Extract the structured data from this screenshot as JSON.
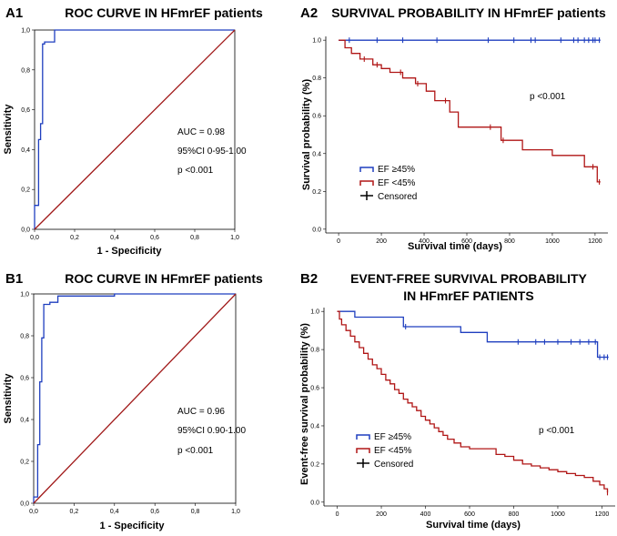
{
  "colors": {
    "blue": "#1f3fbf",
    "red": "#b01616",
    "diag": "#a01818",
    "axis": "#000000",
    "black": "#000000"
  },
  "chart_data": [
    {
      "id": "A1",
      "panel_label": "A1",
      "type": "line",
      "title": "ROC CURVE IN HFmrEF patients",
      "xlabel": "1 - Specificity",
      "ylabel": "Sensitivity",
      "xlim": [
        0,
        1
      ],
      "ylim": [
        0,
        1
      ],
      "xticks": [
        "0,0",
        "0,2",
        "0,4",
        "0,6",
        "0,8",
        "1,0"
      ],
      "yticks": [
        "0,0",
        "0,2",
        "0,4",
        "0,6",
        "0,8",
        "1,0"
      ],
      "annotations": [
        "AUC = 0.98",
        "95%CI 0-95-1.00",
        "p <0.001"
      ],
      "series": [
        {
          "name": "ROC",
          "color": "blue",
          "x": [
            0,
            0,
            0.02,
            0.02,
            0.03,
            0.03,
            0.04,
            0.04,
            0.05,
            0.05,
            0.07,
            0.07,
            0.1,
            0.1,
            1
          ],
          "y": [
            0,
            0.12,
            0.12,
            0.45,
            0.45,
            0.53,
            0.53,
            0.93,
            0.93,
            0.94,
            0.94,
            0.94,
            0.94,
            1,
            1
          ]
        },
        {
          "name": "Reference",
          "color": "diag",
          "x": [
            0,
            1
          ],
          "y": [
            0,
            1
          ]
        }
      ]
    },
    {
      "id": "A2",
      "panel_label": "A2",
      "type": "line",
      "title": "SURVIVAL PROBABILITY IN HFmrEF patients",
      "xlabel": "Survival time (days)",
      "ylabel": "Survival probability (%)",
      "xlim": [
        -60,
        1260
      ],
      "ylim": [
        -0.02,
        1.02
      ],
      "xticks": [
        0,
        200,
        400,
        600,
        800,
        1000,
        1200
      ],
      "yticks": [
        "0.0",
        "0.2",
        "0.4",
        "0.6",
        "0.8",
        "1.0"
      ],
      "annotations": [
        "p <0.001"
      ],
      "legend": [
        {
          "label": "EF ≥45%",
          "color": "blue"
        },
        {
          "label": "EF <45%",
          "color": "red"
        },
        {
          "label": "Censored",
          "color": "black"
        }
      ],
      "series": [
        {
          "name": "EF ≥45%",
          "color": "blue",
          "x": [
            0,
            1225
          ],
          "y": [
            1.0,
            1.0
          ],
          "censored": [
            50,
            180,
            300,
            460,
            700,
            820,
            900,
            920,
            1040,
            1100,
            1120,
            1150,
            1170,
            1190,
            1200,
            1220
          ]
        },
        {
          "name": "EF <45%",
          "color": "red",
          "x": [
            0,
            30,
            60,
            100,
            160,
            200,
            240,
            300,
            360,
            410,
            450,
            520,
            560,
            760,
            860,
            1000,
            1150,
            1210,
            1225
          ],
          "y": [
            1.0,
            0.96,
            0.93,
            0.9,
            0.87,
            0.85,
            0.83,
            0.8,
            0.77,
            0.73,
            0.68,
            0.62,
            0.54,
            0.47,
            0.42,
            0.39,
            0.33,
            0.25,
            0.25
          ],
          "censored": [
            120,
            180,
            290,
            370,
            500,
            710,
            770,
            1190,
            1220
          ]
        }
      ]
    },
    {
      "id": "B1",
      "panel_label": "B1",
      "type": "line",
      "title": "ROC CURVE IN HFmrEF patients",
      "xlabel": "1 - Specificity",
      "ylabel": "Sensitivity",
      "xlim": [
        0,
        1
      ],
      "ylim": [
        0,
        1
      ],
      "xticks": [
        "0,0",
        "0,2",
        "0,4",
        "0,6",
        "0,8",
        "1,0"
      ],
      "yticks": [
        "0,0",
        "0,2",
        "0,4",
        "0,6",
        "0,8",
        "1,0"
      ],
      "annotations": [
        "AUC = 0.96",
        "95%CI 0.90-1.00",
        "p <0.001"
      ],
      "series": [
        {
          "name": "ROC",
          "color": "blue",
          "x": [
            0,
            0,
            0.02,
            0.02,
            0.03,
            0.03,
            0.04,
            0.04,
            0.05,
            0.05,
            0.08,
            0.08,
            0.12,
            0.12,
            0.4,
            0.4,
            1
          ],
          "y": [
            0,
            0.03,
            0.03,
            0.28,
            0.28,
            0.58,
            0.58,
            0.79,
            0.79,
            0.95,
            0.95,
            0.96,
            0.96,
            0.99,
            0.99,
            1,
            1
          ]
        },
        {
          "name": "Reference",
          "color": "diag",
          "x": [
            0,
            1
          ],
          "y": [
            0,
            1
          ]
        }
      ]
    },
    {
      "id": "B2",
      "panel_label": "B2",
      "type": "line",
      "title": "EVENT-FREE SURVIVAL PROBABILITY",
      "title2": "IN HFmrEF PATIENTS",
      "xlabel": "Survival time (days)",
      "ylabel": "Event-free survival probability (%)",
      "xlim": [
        -60,
        1260
      ],
      "ylim": [
        -0.02,
        1.02
      ],
      "xticks": [
        0,
        200,
        400,
        600,
        800,
        1000,
        1200
      ],
      "yticks": [
        "0.0",
        "0.2",
        "0.4",
        "0.6",
        "0.8",
        "1.0"
      ],
      "annotations": [
        "p <0.001"
      ],
      "legend": [
        {
          "label": "EF ≥45%",
          "color": "blue"
        },
        {
          "label": "EF <45%",
          "color": "red"
        },
        {
          "label": "Censored",
          "color": "black"
        }
      ],
      "series": [
        {
          "name": "EF ≥45%",
          "color": "blue",
          "x": [
            0,
            80,
            300,
            560,
            680,
            1180,
            1230
          ],
          "y": [
            1.0,
            0.97,
            0.92,
            0.89,
            0.84,
            0.76,
            0.76
          ],
          "censored": [
            310,
            820,
            900,
            940,
            1000,
            1060,
            1100,
            1140,
            1170,
            1190,
            1210,
            1225
          ]
        },
        {
          "name": "EF <45%",
          "color": "red",
          "x": [
            0,
            10,
            20,
            40,
            60,
            80,
            100,
            120,
            140,
            160,
            180,
            200,
            220,
            240,
            260,
            280,
            300,
            320,
            340,
            360,
            380,
            400,
            420,
            440,
            460,
            480,
            500,
            530,
            560,
            600,
            660,
            720,
            760,
            800,
            840,
            880,
            920,
            960,
            1000,
            1040,
            1080,
            1120,
            1160,
            1190,
            1210,
            1225
          ],
          "y": [
            1.0,
            0.96,
            0.93,
            0.9,
            0.87,
            0.84,
            0.81,
            0.78,
            0.75,
            0.72,
            0.7,
            0.67,
            0.64,
            0.62,
            0.59,
            0.57,
            0.54,
            0.52,
            0.5,
            0.48,
            0.45,
            0.43,
            0.41,
            0.39,
            0.37,
            0.35,
            0.33,
            0.31,
            0.29,
            0.28,
            0.28,
            0.25,
            0.24,
            0.22,
            0.2,
            0.19,
            0.18,
            0.17,
            0.16,
            0.15,
            0.14,
            0.13,
            0.11,
            0.09,
            0.07,
            0.05
          ],
          "censored": [
            1225
          ]
        }
      ]
    }
  ]
}
